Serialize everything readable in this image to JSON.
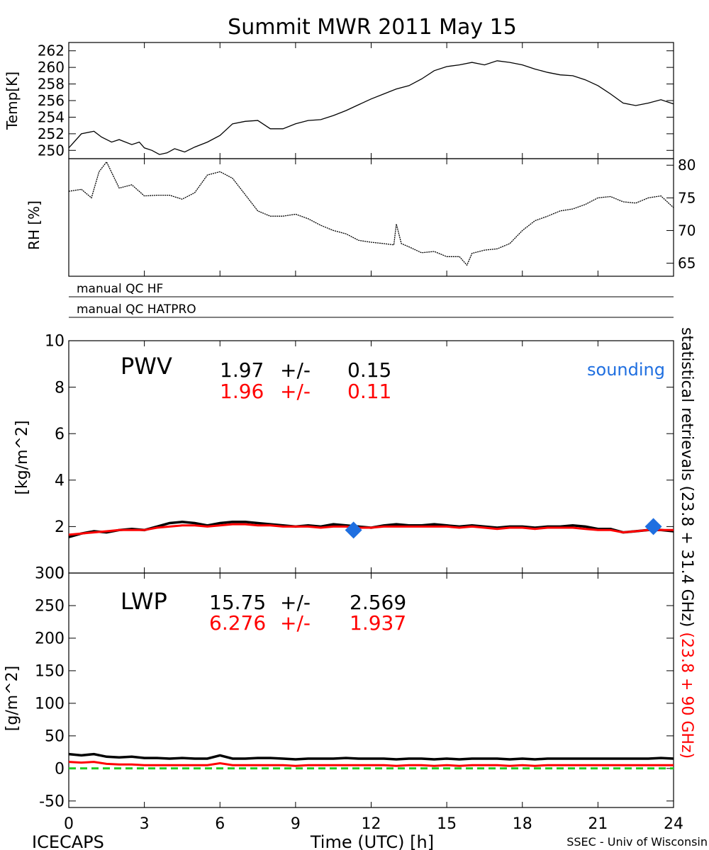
{
  "title": "Summit MWR 2011 May 15",
  "footer": {
    "left": "ICECAPS",
    "center": "Time (UTC) [h]",
    "right": "SSEC - Univ of Wisconsin"
  },
  "x_ticks": [
    "0",
    "3",
    "6",
    "9",
    "12",
    "15",
    "18",
    "21",
    "24"
  ],
  "qc": {
    "hf": "manual QC HF",
    "hatpro": "manual QC HATPRO"
  },
  "right_label": {
    "black": "statistical retrievals (23.8 + 31.4 GHz)",
    "red": "(23.8 + 90 GHz)"
  },
  "colors": {
    "black": "#000000",
    "red": "#ff0000",
    "blue": "#1f6fe0",
    "green": "#22cc22"
  },
  "chart_data": [
    {
      "type": "line",
      "name": "temp",
      "ylabel": "Temp[K]",
      "xlim": [
        0,
        24
      ],
      "ylim": [
        249,
        263
      ],
      "y_ticks": [
        "250",
        "252",
        "254",
        "256",
        "258",
        "260",
        "262"
      ],
      "x": [
        0,
        0.5,
        1,
        1.3,
        1.7,
        2,
        2.5,
        2.8,
        3,
        3.3,
        3.6,
        3.9,
        4.2,
        4.6,
        5,
        5.5,
        6,
        6.5,
        7,
        7.5,
        8,
        8.5,
        9,
        9.5,
        10,
        10.5,
        11,
        11.5,
        12,
        12.5,
        13,
        13.5,
        14,
        14.5,
        15,
        15.5,
        16,
        16.5,
        17,
        17.5,
        18,
        18.5,
        19,
        19.5,
        20,
        20.5,
        21,
        21.5,
        22,
        22.5,
        23,
        23.5,
        24
      ],
      "y": [
        250.3,
        252,
        252.3,
        251.6,
        251,
        251.3,
        250.7,
        251,
        250.3,
        250,
        249.5,
        249.7,
        250.2,
        249.8,
        250.4,
        251,
        251.8,
        253.2,
        253.5,
        253.6,
        252.6,
        252.6,
        253.2,
        253.6,
        253.7,
        254.2,
        254.8,
        255.5,
        256.2,
        256.8,
        257.4,
        257.8,
        258.6,
        259.6,
        260.1,
        260.3,
        260.6,
        260.3,
        260.8,
        260.6,
        260.3,
        259.8,
        259.4,
        259.1,
        259,
        258.5,
        257.8,
        256.8,
        255.7,
        255.4,
        255.7,
        256.1,
        255.6
      ]
    },
    {
      "type": "line",
      "name": "rh",
      "ylabel": "RH [%]",
      "xlim": [
        0,
        24
      ],
      "ylim": [
        63,
        81
      ],
      "y_ticks": [
        "65",
        "70",
        "75",
        "80"
      ],
      "x": [
        0,
        0.5,
        0.9,
        1.2,
        1.5,
        2,
        2.5,
        3,
        3.5,
        4,
        4.5,
        5,
        5.5,
        6,
        6.5,
        7,
        7.5,
        8,
        8.5,
        9,
        9.5,
        10,
        10.5,
        11,
        11.5,
        12,
        12.5,
        12.9,
        13,
        13.2,
        13.5,
        14,
        14.5,
        15,
        15.5,
        15.8,
        16,
        16.5,
        17,
        17.5,
        18,
        18.5,
        19,
        19.5,
        20,
        20.5,
        21,
        21.5,
        22,
        22.5,
        23,
        23.5,
        24
      ],
      "y": [
        76,
        76.3,
        75,
        79,
        80.5,
        76.5,
        77,
        75.3,
        75.4,
        75.4,
        74.8,
        75.8,
        78.5,
        79,
        78,
        75.5,
        73,
        72.2,
        72.2,
        72.5,
        71.8,
        70.8,
        70,
        69.5,
        68.5,
        68.2,
        68,
        67.8,
        71,
        68,
        67.5,
        66.6,
        66.8,
        66,
        66,
        64.7,
        66.5,
        67,
        67.2,
        68,
        70,
        71.5,
        72.2,
        73,
        73.3,
        74,
        75,
        75.2,
        74.4,
        74.2,
        75,
        75.3,
        73.5
      ]
    },
    {
      "type": "line",
      "name": "pwv",
      "title": "PWV",
      "ylabel": "[kg/m^2]",
      "xlim": [
        0,
        24
      ],
      "ylim": [
        0,
        10
      ],
      "y_ticks": [
        "0",
        "2",
        "4",
        "6",
        "8",
        "10"
      ],
      "stats": {
        "black_value": "1.97",
        "black_err": "0.15",
        "red_value": "1.96",
        "red_err": "0.11",
        "pm": "+/-"
      },
      "legend": "sounding",
      "series": [
        {
          "color": "black",
          "x": [
            0,
            0.5,
            1,
            1.5,
            2,
            2.5,
            3,
            3.5,
            4,
            4.5,
            5,
            5.5,
            6,
            6.5,
            7,
            7.5,
            8,
            8.5,
            9,
            9.5,
            10,
            10.5,
            11,
            11.5,
            12,
            12.5,
            13,
            13.5,
            14,
            14.5,
            15,
            15.5,
            16,
            16.5,
            17,
            17.5,
            18,
            18.5,
            19,
            19.5,
            20,
            20.5,
            21,
            21.5,
            22,
            22.5,
            23,
            23.5,
            24
          ],
          "y": [
            1.55,
            1.7,
            1.8,
            1.75,
            1.85,
            1.9,
            1.85,
            2.0,
            2.15,
            2.2,
            2.15,
            2.05,
            2.15,
            2.2,
            2.2,
            2.15,
            2.1,
            2.05,
            2.0,
            2.05,
            2.0,
            2.1,
            2.05,
            2.0,
            1.95,
            2.05,
            2.1,
            2.05,
            2.05,
            2.1,
            2.05,
            2.0,
            2.05,
            2.0,
            1.95,
            2.0,
            2.0,
            1.95,
            2.0,
            2.0,
            2.05,
            2.0,
            1.9,
            1.9,
            1.75,
            1.8,
            1.85,
            1.85,
            1.8
          ]
        },
        {
          "color": "red",
          "x": [
            0,
            0.5,
            1,
            1.5,
            2,
            2.5,
            3,
            3.5,
            4,
            4.5,
            5,
            5.5,
            6,
            6.5,
            7,
            7.5,
            8,
            8.5,
            9,
            9.5,
            10,
            10.5,
            11,
            11.5,
            12,
            12.5,
            13,
            13.5,
            14,
            14.5,
            15,
            15.5,
            16,
            16.5,
            17,
            17.5,
            18,
            18.5,
            19,
            19.5,
            20,
            20.5,
            21,
            21.5,
            22,
            22.5,
            23,
            23.5,
            24
          ],
          "y": [
            1.65,
            1.7,
            1.75,
            1.8,
            1.85,
            1.85,
            1.85,
            1.95,
            2.0,
            2.05,
            2.05,
            2.0,
            2.05,
            2.1,
            2.1,
            2.05,
            2.05,
            2.0,
            2.0,
            2.0,
            1.95,
            2.0,
            2.0,
            1.95,
            1.95,
            2.0,
            2.0,
            2.0,
            2.0,
            2.0,
            2.0,
            1.95,
            2.0,
            1.95,
            1.9,
            1.95,
            1.95,
            1.9,
            1.95,
            1.95,
            1.95,
            1.9,
            1.85,
            1.85,
            1.75,
            1.8,
            1.85,
            1.85,
            1.85
          ]
        },
        {
          "color": "blue",
          "marker": "diamond",
          "x": [
            11.3,
            23.2
          ],
          "y": [
            1.85,
            2.0
          ]
        }
      ]
    },
    {
      "type": "line",
      "name": "lwp",
      "title": "LWP",
      "ylabel": "[g/m^2]",
      "xlim": [
        0,
        24
      ],
      "ylim": [
        -60,
        300
      ],
      "y_ticks": [
        "-50",
        "0",
        "50",
        "100",
        "150",
        "200",
        "250",
        "300"
      ],
      "stats": {
        "black_value": "15.75",
        "black_err": "2.569",
        "red_value": "6.276",
        "red_err": "1.937",
        "pm": "+/-"
      },
      "series": [
        {
          "color": "black",
          "x": [
            0,
            0.5,
            1,
            1.5,
            2,
            2.5,
            3,
            3.5,
            4,
            4.5,
            5,
            5.5,
            6,
            6.5,
            7,
            7.5,
            8,
            8.5,
            9,
            9.5,
            10,
            10.5,
            11,
            11.5,
            12,
            12.5,
            13,
            13.5,
            14,
            14.5,
            15,
            15.5,
            16,
            16.5,
            17,
            17.5,
            18,
            18.5,
            19,
            19.5,
            20,
            20.5,
            21,
            21.5,
            22,
            22.5,
            23,
            23.5,
            24
          ],
          "y": [
            22,
            20,
            22,
            18,
            17,
            18,
            16,
            16,
            15,
            16,
            15,
            15,
            20,
            15,
            15,
            16,
            16,
            15,
            14,
            15,
            15,
            15,
            16,
            15,
            15,
            15,
            14,
            15,
            15,
            14,
            15,
            14,
            15,
            15,
            15,
            14,
            15,
            14,
            15,
            15,
            15,
            15,
            15,
            15,
            15,
            15,
            15,
            16,
            15
          ]
        },
        {
          "color": "red",
          "x": [
            0,
            0.5,
            1,
            1.5,
            2,
            2.5,
            3,
            3.5,
            4,
            4.5,
            5,
            5.5,
            6,
            6.5,
            7,
            7.5,
            8,
            8.5,
            9,
            9.5,
            10,
            10.5,
            11,
            11.5,
            12,
            12.5,
            13,
            13.5,
            14,
            14.5,
            15,
            15.5,
            16,
            16.5,
            17,
            17.5,
            18,
            18.5,
            19,
            19.5,
            20,
            20.5,
            21,
            21.5,
            22,
            22.5,
            23,
            23.5,
            24
          ],
          "y": [
            10,
            9,
            10,
            7,
            6,
            6,
            5,
            5,
            5,
            5,
            5,
            5,
            8,
            5,
            5,
            5,
            5,
            5,
            4,
            5,
            5,
            5,
            5,
            5,
            5,
            5,
            4,
            5,
            5,
            4,
            5,
            4,
            5,
            5,
            5,
            4,
            5,
            4,
            5,
            5,
            5,
            5,
            5,
            5,
            5,
            5,
            5,
            5,
            5
          ]
        },
        {
          "color": "green",
          "style": "dashed",
          "x": [
            0,
            24
          ],
          "y": [
            0,
            0
          ]
        }
      ]
    }
  ]
}
